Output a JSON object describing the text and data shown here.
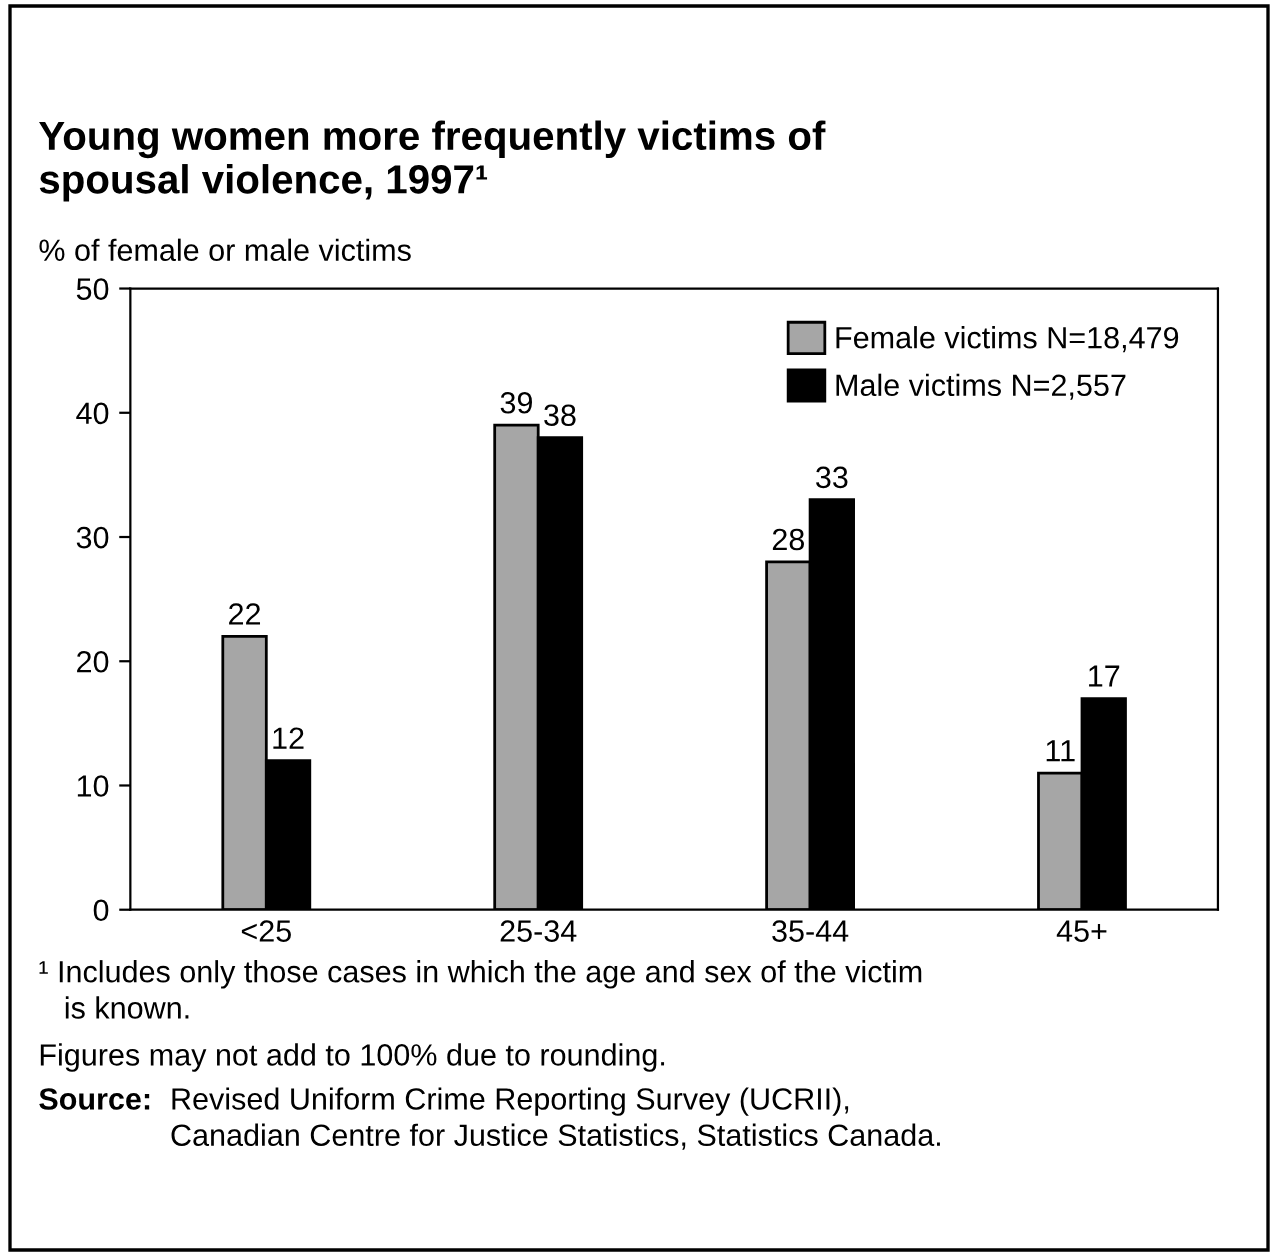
{
  "chart_data": {
    "type": "bar",
    "title": "Young women more frequently victims of\nspousal violence, 1997¹",
    "ylabel": "% of female or male victims",
    "categories": [
      "<25",
      "25-34",
      "35-44",
      "45+"
    ],
    "series": [
      {
        "name": "Female victims N=18,479",
        "color": "#a6a6a6",
        "values": [
          22,
          39,
          28,
          11
        ]
      },
      {
        "name": "Male victims N=2,557",
        "color": "#000000",
        "values": [
          12,
          38,
          33,
          17
        ]
      }
    ],
    "ylim": [
      0,
      50
    ],
    "yticks": [
      0,
      10,
      20,
      30,
      40,
      50
    ],
    "data_labels": true,
    "grid": false,
    "legend": "top right",
    "annotations": [
      "¹ Includes only those cases in which the age and sex of the victim\n   is known.",
      "Figures may not add to 100% due to rounding.",
      "Source:",
      "Revised Uniform Crime Reporting Survey (UCRII),\nCanadian Centre for Justice Statistics, Statistics Canada."
    ]
  }
}
